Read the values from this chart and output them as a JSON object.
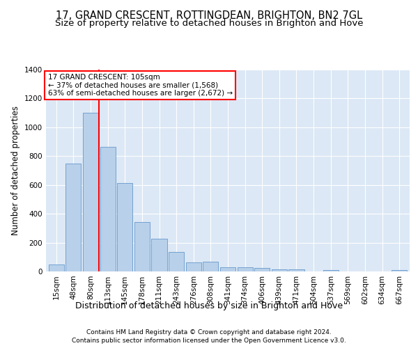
{
  "title": "17, GRAND CRESCENT, ROTTINGDEAN, BRIGHTON, BN2 7GL",
  "subtitle": "Size of property relative to detached houses in Brighton and Hove",
  "xlabel": "Distribution of detached houses by size in Brighton and Hove",
  "ylabel": "Number of detached properties",
  "footnote1": "Contains HM Land Registry data © Crown copyright and database right 2024.",
  "footnote2": "Contains public sector information licensed under the Open Government Licence v3.0.",
  "categories": [
    "15sqm",
    "48sqm",
    "80sqm",
    "113sqm",
    "145sqm",
    "178sqm",
    "211sqm",
    "243sqm",
    "276sqm",
    "308sqm",
    "341sqm",
    "374sqm",
    "406sqm",
    "439sqm",
    "471sqm",
    "504sqm",
    "537sqm",
    "569sqm",
    "602sqm",
    "634sqm",
    "667sqm"
  ],
  "values": [
    50,
    750,
    1100,
    865,
    615,
    345,
    225,
    135,
    62,
    70,
    30,
    30,
    22,
    15,
    15,
    0,
    12,
    0,
    0,
    0,
    12
  ],
  "bar_color": "#b8d0ea",
  "bar_edge_color": "#6699cc",
  "vline_x": 2.5,
  "vline_color": "red",
  "annotation_title": "17 GRAND CRESCENT: 105sqm",
  "annotation_line1": "← 37% of detached houses are smaller (1,568)",
  "annotation_line2": "63% of semi-detached houses are larger (2,672) →",
  "annotation_box_color": "red",
  "ylim": [
    0,
    1400
  ],
  "plot_bg_color": "#dce8f5",
  "grid_color": "white",
  "title_fontsize": 10.5,
  "subtitle_fontsize": 9.5,
  "xlabel_fontsize": 9,
  "ylabel_fontsize": 8.5,
  "footnote_fontsize": 6.5,
  "tick_fontsize": 7.5
}
